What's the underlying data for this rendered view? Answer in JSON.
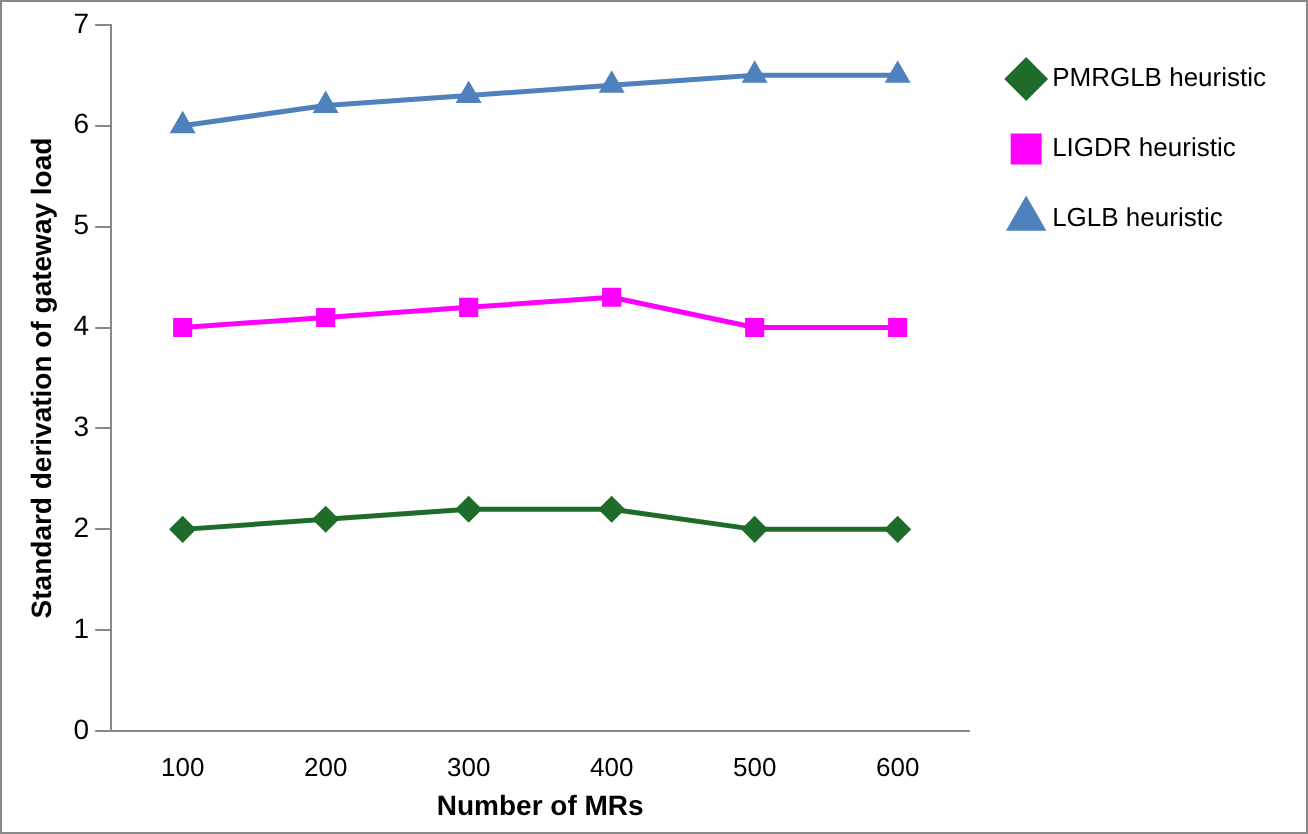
{
  "chart_data": {
    "type": "line",
    "xlabel": "Number of MRs",
    "ylabel": "Standard derivation of gateway load",
    "categories": [
      "100",
      "200",
      "300",
      "400",
      "500",
      "600"
    ],
    "series": [
      {
        "name": "PMRGLB heuristic",
        "color": "#1e6b2a",
        "marker": "diamond",
        "values": [
          2,
          2.1,
          2.2,
          2.2,
          2,
          2
        ]
      },
      {
        "name": "LIGDR heuristic",
        "color": "#ff00ff",
        "marker": "square",
        "values": [
          4,
          4.1,
          4.2,
          4.3,
          4,
          4
        ]
      },
      {
        "name": "LGLB heuristic",
        "color": "#4f81bd",
        "marker": "triangle",
        "values": [
          6,
          6.2,
          6.3,
          6.4,
          6.5,
          6.5
        ]
      }
    ],
    "ylim": [
      0,
      7
    ],
    "yticks": [
      0,
      1,
      2,
      3,
      4,
      5,
      6,
      7
    ],
    "grid": false,
    "legend": "top right"
  }
}
